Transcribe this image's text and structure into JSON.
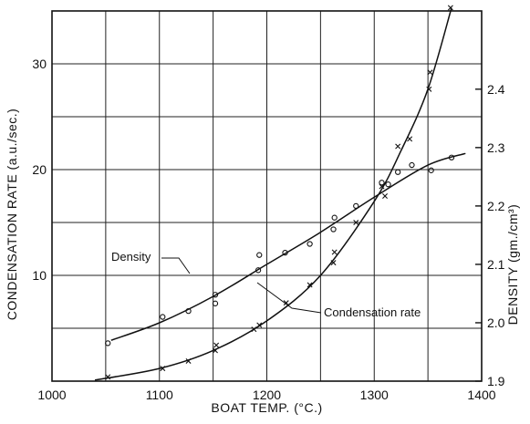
{
  "chart_data": {
    "type": "scatter",
    "title": "",
    "xlabel": "BOAT TEMP. (°C.)",
    "ylabel_left": "CONDENSATION RATE (a.u./sec.)",
    "ylabel_right": "DENSITY (gm./cm³)",
    "x_range": [
      1000,
      1400
    ],
    "y_left_range": [
      0,
      35
    ],
    "y_right_range": [
      1.9,
      2.534
    ],
    "x_ticks": [
      1000,
      1100,
      1200,
      1300,
      1400
    ],
    "y_left_ticks": [
      10,
      20,
      30
    ],
    "y_right_ticks": [
      1.9,
      2.0,
      2.1,
      2.2,
      2.3,
      2.4
    ],
    "y_right_tick_labels": [
      "1.9",
      "2.0",
      "2.1",
      "2.2",
      "2.3",
      "2.4"
    ],
    "grid": true,
    "series": [
      {
        "name": "Density",
        "axis": "right",
        "marker": "circle",
        "points": [
          [
            1052,
            1.965
          ],
          [
            1103,
            2.01
          ],
          [
            1127,
            2.02
          ],
          [
            1152,
            2.033
          ],
          [
            1152,
            2.048
          ],
          [
            1192,
            2.09
          ],
          [
            1193,
            2.116
          ],
          [
            1217,
            2.12
          ],
          [
            1240,
            2.135
          ],
          [
            1262,
            2.16
          ],
          [
            1263,
            2.18
          ],
          [
            1283,
            2.2
          ],
          [
            1307,
            2.24
          ],
          [
            1313,
            2.237
          ],
          [
            1322,
            2.258
          ],
          [
            1335,
            2.27
          ],
          [
            1353,
            2.261
          ],
          [
            1372,
            2.283
          ]
        ],
        "fit_curve": [
          [
            1055,
            1.97
          ],
          [
            1100,
            2.0
          ],
          [
            1150,
            2.045
          ],
          [
            1200,
            2.1
          ],
          [
            1250,
            2.155
          ],
          [
            1300,
            2.215
          ],
          [
            1350,
            2.27
          ],
          [
            1385,
            2.29
          ]
        ]
      },
      {
        "name": "Condensation rate",
        "axis": "left",
        "marker": "x",
        "points": [
          [
            1052,
            0.4
          ],
          [
            1103,
            1.2
          ],
          [
            1127,
            1.9
          ],
          [
            1152,
            2.9
          ],
          [
            1153,
            3.4
          ],
          [
            1188,
            4.9
          ],
          [
            1193,
            5.3
          ],
          [
            1218,
            7.4
          ],
          [
            1240,
            9.1
          ],
          [
            1262,
            11.2
          ],
          [
            1263,
            12.2
          ],
          [
            1283,
            15.0
          ],
          [
            1307,
            18.4
          ],
          [
            1310,
            17.5
          ],
          [
            1322,
            22.2
          ],
          [
            1333,
            22.9
          ],
          [
            1351,
            27.6
          ],
          [
            1352,
            29.2
          ],
          [
            1371,
            35.3
          ]
        ],
        "fit_curve": [
          [
            1040,
            0.1
          ],
          [
            1100,
            1.2
          ],
          [
            1150,
            2.9
          ],
          [
            1200,
            5.7
          ],
          [
            1250,
            10.0
          ],
          [
            1300,
            17.0
          ],
          [
            1325,
            21.8
          ],
          [
            1350,
            27.6
          ],
          [
            1372,
            35.3
          ]
        ]
      }
    ],
    "annotations": [
      {
        "text": "Density",
        "target_series": "Density"
      },
      {
        "text": "Condensation rate",
        "target_series": "Condensation rate"
      }
    ]
  }
}
